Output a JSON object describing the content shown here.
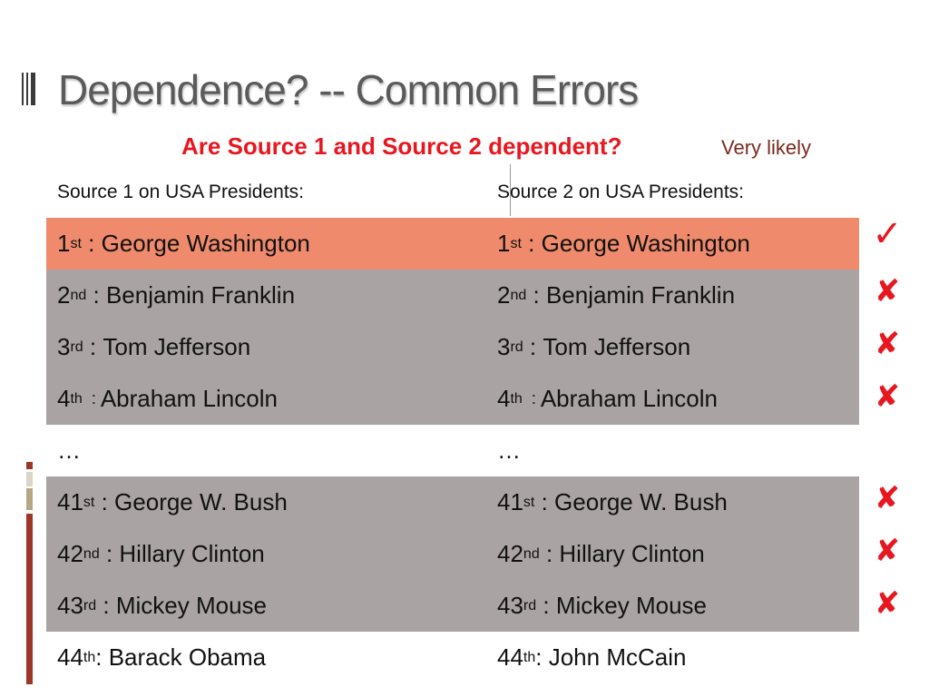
{
  "slide": {
    "title": "Dependence?  -- Common Errors",
    "question": "Are Source 1 and Source 2 dependent?",
    "answer": "Very likely"
  },
  "table": {
    "header": {
      "source1": "Source 1 on USA Presidents:",
      "source2": "Source 2 on USA Presidents:"
    },
    "rows": [
      {
        "s1_num": "1",
        "s1_suf": "st",
        "s1_sep": " : ",
        "s1_name": "George Washington",
        "s2_num": "1",
        "s2_suf": "st",
        "s2_sep": " : ",
        "s2_name": "George Washington",
        "mark": "✓",
        "mark_type": "check"
      },
      {
        "s1_num": "2",
        "s1_suf": "nd",
        "s1_sep": " : ",
        "s1_name": "Benjamin Franklin",
        "s2_num": "2",
        "s2_suf": "nd",
        "s2_sep": " : ",
        "s2_name": "Benjamin Franklin",
        "mark": "✘",
        "mark_type": "cross"
      },
      {
        "s1_num": "3",
        "s1_suf": "rd",
        "s1_sep": " : ",
        "s1_name": "Tom Jefferson",
        "s2_num": "3",
        "s2_suf": "rd",
        "s2_sep": " : ",
        "s2_name": "Tom Jefferson",
        "mark": "✘",
        "mark_type": "cross"
      },
      {
        "s1_num": "4",
        "s1_suf": "th",
        "s1_sep": "  : ",
        "s1_name": "Abraham Lincoln",
        "s2_num": "4",
        "s2_suf": "th",
        "s2_sep": "  : ",
        "s2_name": "Abraham Lincoln",
        "mark": "✘",
        "mark_type": "cross"
      },
      {
        "s1_text": "…",
        "s2_text": "…"
      },
      {
        "s1_num": "41",
        "s1_suf": "st",
        "s1_sep": " : ",
        "s1_name": "George W. Bush",
        "s2_num": "41",
        "s2_suf": "st",
        "s2_sep": " : ",
        "s2_name": "George W. Bush",
        "mark": "✘",
        "mark_type": "cross"
      },
      {
        "s1_num": "42",
        "s1_suf": "nd",
        "s1_sep": " : ",
        "s1_name": "Hillary Clinton",
        "s2_num": "42",
        "s2_suf": "nd",
        "s2_sep": " : ",
        "s2_name": "Hillary Clinton",
        "mark": "✘",
        "mark_type": "cross"
      },
      {
        "s1_num": "43",
        "s1_suf": "rd",
        "s1_sep": " : ",
        "s1_name": "Mickey Mouse",
        "s2_num": "43",
        "s2_suf": "rd",
        "s2_sep": " : ",
        "s2_name": "Mickey Mouse",
        "mark": "✘",
        "mark_type": "cross"
      },
      {
        "s1_num": "44",
        "s1_suf": "th",
        "s1_sep": ": ",
        "s1_name": "Barack Obama",
        "s2_num": "44",
        "s2_suf": "th",
        "s2_sep": ": ",
        "s2_name": "John McCain"
      }
    ]
  },
  "colors": {
    "highlight_row": "#ef8b6c",
    "gray_row": "#a9a3a3",
    "accent_red": "#e8171f",
    "answer_text": "#7a2a20",
    "side_accent": "#9c3626"
  }
}
